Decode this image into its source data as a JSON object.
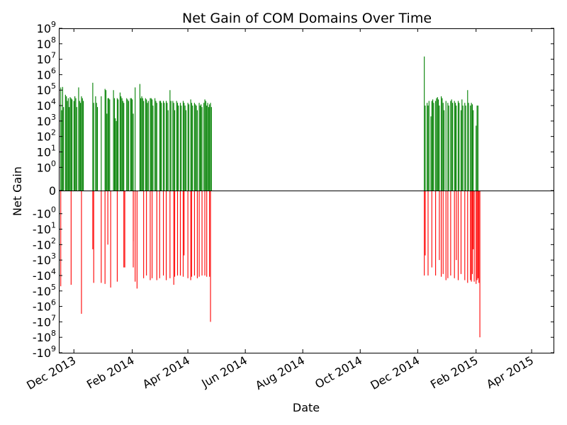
{
  "chart_data": {
    "type": "bar",
    "title": "Net Gain of COM Domains Over Time",
    "xlabel": "Date",
    "ylabel": "Net Gain",
    "yscale": "symlog",
    "xlim": [
      "2013-11-15",
      "2015-04-25"
    ],
    "ylim": [
      -1000000000,
      1000000000
    ],
    "grid": false,
    "legend": "none",
    "colors": {
      "positive": "#008000",
      "negative": "#ff0000"
    },
    "x_ticks": [
      {
        "date": "2013-12-01",
        "label": "Dec 2013"
      },
      {
        "date": "2014-02-01",
        "label": "Feb 2014"
      },
      {
        "date": "2014-04-01",
        "label": "Apr 2014"
      },
      {
        "date": "2014-06-01",
        "label": "Jun 2014"
      },
      {
        "date": "2014-08-01",
        "label": "Aug 2014"
      },
      {
        "date": "2014-10-01",
        "label": "Oct 2014"
      },
      {
        "date": "2014-12-01",
        "label": "Dec 2014"
      },
      {
        "date": "2015-02-01",
        "label": "Feb 2015"
      },
      {
        "date": "2015-04-01",
        "label": "Apr 2015"
      }
    ],
    "y_ticks": [
      {
        "value": 1000000000,
        "base": "10",
        "exp": "9"
      },
      {
        "value": 100000000,
        "base": "10",
        "exp": "8"
      },
      {
        "value": 10000000,
        "base": "10",
        "exp": "7"
      },
      {
        "value": 1000000,
        "base": "10",
        "exp": "6"
      },
      {
        "value": 100000,
        "base": "10",
        "exp": "5"
      },
      {
        "value": 10000,
        "base": "10",
        "exp": "4"
      },
      {
        "value": 1000,
        "base": "10",
        "exp": "3"
      },
      {
        "value": 100,
        "base": "10",
        "exp": "2"
      },
      {
        "value": 10,
        "base": "10",
        "exp": "1"
      },
      {
        "value": 1,
        "base": "10",
        "exp": "0"
      },
      {
        "value": 0,
        "base": "0",
        "exp": ""
      },
      {
        "value": -1,
        "base": "-10",
        "exp": "0"
      },
      {
        "value": -10,
        "base": "-10",
        "exp": "1"
      },
      {
        "value": -100,
        "base": "-10",
        "exp": "2"
      },
      {
        "value": -1000,
        "base": "-10",
        "exp": "3"
      },
      {
        "value": -10000,
        "base": "-10",
        "exp": "4"
      },
      {
        "value": -100000,
        "base": "-10",
        "exp": "5"
      },
      {
        "value": -1000000,
        "base": "-10",
        "exp": "6"
      },
      {
        "value": -10000000,
        "base": "-10",
        "exp": "7"
      },
      {
        "value": -100000000,
        "base": "-10",
        "exp": "8"
      },
      {
        "value": -1000000000,
        "base": "-10",
        "exp": "9"
      }
    ],
    "series": [
      {
        "sign": "positive",
        "points": [
          [
            "2013-11-17",
            150000
          ],
          [
            "2013-11-18",
            5000
          ],
          [
            "2013-11-19",
            160000
          ],
          [
            "2013-11-20",
            8000
          ],
          [
            "2013-11-22",
            50000
          ],
          [
            "2013-11-23",
            40000
          ],
          [
            "2013-11-24",
            20000
          ],
          [
            "2013-11-25",
            30000
          ],
          [
            "2013-11-26",
            8000
          ],
          [
            "2013-11-27",
            35000
          ],
          [
            "2013-11-28",
            30000
          ],
          [
            "2013-11-29",
            25000
          ],
          [
            "2013-12-01",
            20000
          ],
          [
            "2013-12-02",
            40000
          ],
          [
            "2013-12-03",
            30000
          ],
          [
            "2013-12-04",
            8000
          ],
          [
            "2013-12-06",
            150000
          ],
          [
            "2013-12-07",
            20000
          ],
          [
            "2013-12-08",
            15000
          ],
          [
            "2013-12-09",
            40000
          ],
          [
            "2013-12-10",
            30000
          ],
          [
            "2013-12-11",
            20000
          ],
          [
            "2013-12-21",
            300000
          ],
          [
            "2013-12-22",
            15000
          ],
          [
            "2013-12-24",
            40000
          ],
          [
            "2013-12-25",
            15000
          ],
          [
            "2013-12-26",
            8000
          ],
          [
            "2013-12-30",
            40000
          ],
          [
            "2014-01-03",
            120000
          ],
          [
            "2014-01-04",
            100000
          ],
          [
            "2014-01-05",
            3000
          ],
          [
            "2014-01-06",
            30000
          ],
          [
            "2014-01-07",
            30000
          ],
          [
            "2014-01-08",
            25000
          ],
          [
            "2014-01-12",
            100000
          ],
          [
            "2014-01-13",
            30000
          ],
          [
            "2014-01-14",
            1500
          ],
          [
            "2014-01-15",
            1000
          ],
          [
            "2014-01-16",
            30000
          ],
          [
            "2014-01-17",
            25000
          ],
          [
            "2014-01-19",
            70000
          ],
          [
            "2014-01-20",
            40000
          ],
          [
            "2014-01-21",
            30000
          ],
          [
            "2014-01-22",
            20000
          ],
          [
            "2014-01-23",
            15000
          ],
          [
            "2014-01-26",
            30000
          ],
          [
            "2014-01-27",
            25000
          ],
          [
            "2014-01-28",
            20000
          ],
          [
            "2014-01-30",
            30000
          ],
          [
            "2014-01-31",
            30000
          ],
          [
            "2014-02-01",
            25000
          ],
          [
            "2014-02-02",
            3000
          ],
          [
            "2014-02-04",
            150000
          ],
          [
            "2014-02-09",
            250000
          ],
          [
            "2014-02-10",
            30000
          ],
          [
            "2014-02-11",
            40000
          ],
          [
            "2014-02-12",
            30000
          ],
          [
            "2014-02-13",
            20000
          ],
          [
            "2014-02-15",
            30000
          ],
          [
            "2014-02-16",
            25000
          ],
          [
            "2014-02-17",
            15000
          ],
          [
            "2014-02-18",
            20000
          ],
          [
            "2014-02-20",
            30000
          ],
          [
            "2014-02-21",
            30000
          ],
          [
            "2014-02-22",
            25000
          ],
          [
            "2014-02-23",
            10000
          ],
          [
            "2014-02-25",
            30000
          ],
          [
            "2014-02-26",
            20000
          ],
          [
            "2014-02-27",
            15000
          ],
          [
            "2014-03-02",
            20000
          ],
          [
            "2014-03-03",
            20000
          ],
          [
            "2014-03-04",
            15000
          ],
          [
            "2014-03-06",
            20000
          ],
          [
            "2014-03-07",
            15000
          ],
          [
            "2014-03-09",
            20000
          ],
          [
            "2014-03-10",
            15000
          ],
          [
            "2014-03-11",
            5000
          ],
          [
            "2014-03-13",
            100000
          ],
          [
            "2014-03-14",
            20000
          ],
          [
            "2014-03-16",
            20000
          ],
          [
            "2014-03-17",
            15000
          ],
          [
            "2014-03-18",
            5000
          ],
          [
            "2014-03-20",
            20000
          ],
          [
            "2014-03-21",
            15000
          ],
          [
            "2014-03-22",
            10000
          ],
          [
            "2014-03-24",
            15000
          ],
          [
            "2014-03-25",
            10000
          ],
          [
            "2014-03-27",
            20000
          ],
          [
            "2014-03-28",
            15000
          ],
          [
            "2014-03-29",
            10000
          ],
          [
            "2014-03-30",
            5000
          ],
          [
            "2014-04-01",
            15000
          ],
          [
            "2014-04-02",
            12000
          ],
          [
            "2014-04-04",
            25000
          ],
          [
            "2014-04-05",
            15000
          ],
          [
            "2014-04-06",
            10000
          ],
          [
            "2014-04-08",
            15000
          ],
          [
            "2014-04-09",
            12000
          ],
          [
            "2014-04-10",
            10000
          ],
          [
            "2014-04-11",
            5000
          ],
          [
            "2014-04-13",
            15000
          ],
          [
            "2014-04-14",
            10000
          ],
          [
            "2014-04-15",
            12000
          ],
          [
            "2014-04-16",
            8000
          ],
          [
            "2014-04-18",
            15000
          ],
          [
            "2014-04-19",
            25000
          ],
          [
            "2014-04-20",
            20000
          ],
          [
            "2014-04-21",
            10000
          ],
          [
            "2014-04-22",
            15000
          ],
          [
            "2014-04-23",
            8000
          ],
          [
            "2014-04-24",
            12000
          ],
          [
            "2014-04-25",
            15000
          ],
          [
            "2014-04-26",
            8000
          ],
          [
            "2014-12-08",
            15000000
          ],
          [
            "2014-12-09",
            10000
          ],
          [
            "2014-12-11",
            15000
          ],
          [
            "2014-12-12",
            10000
          ],
          [
            "2014-12-13",
            20000
          ],
          [
            "2014-12-15",
            2000
          ],
          [
            "2014-12-16",
            20000
          ],
          [
            "2014-12-17",
            25000
          ],
          [
            "2014-12-18",
            15000
          ],
          [
            "2014-12-20",
            20000
          ],
          [
            "2014-12-21",
            30000
          ],
          [
            "2014-12-22",
            35000
          ],
          [
            "2014-12-23",
            25000
          ],
          [
            "2014-12-24",
            10000
          ],
          [
            "2014-12-26",
            40000
          ],
          [
            "2014-12-27",
            30000
          ],
          [
            "2014-12-28",
            15000
          ],
          [
            "2014-12-29",
            5000
          ],
          [
            "2014-12-31",
            20000
          ],
          [
            "2015-01-02",
            15000
          ],
          [
            "2015-01-03",
            10000
          ],
          [
            "2015-01-05",
            20000
          ],
          [
            "2015-01-06",
            25000
          ],
          [
            "2015-01-07",
            15000
          ],
          [
            "2015-01-09",
            20000
          ],
          [
            "2015-01-10",
            15000
          ],
          [
            "2015-01-11",
            10000
          ],
          [
            "2015-01-13",
            20000
          ],
          [
            "2015-01-14",
            15000
          ],
          [
            "2015-01-16",
            5000
          ],
          [
            "2015-01-17",
            25000
          ],
          [
            "2015-01-18",
            10000
          ],
          [
            "2015-01-20",
            15000
          ],
          [
            "2015-01-21",
            10000
          ],
          [
            "2015-01-23",
            100000
          ],
          [
            "2015-01-24",
            15000
          ],
          [
            "2015-01-26",
            10000
          ],
          [
            "2015-01-27",
            15000
          ],
          [
            "2015-01-28",
            12000
          ],
          [
            "2015-01-29",
            5000
          ],
          [
            "2015-02-01",
            500
          ],
          [
            "2015-02-02",
            10000
          ],
          [
            "2015-02-03",
            10000
          ]
        ]
      },
      {
        "sign": "negative",
        "points": [
          [
            "2013-11-17",
            -50000
          ],
          [
            "2013-11-28",
            -40000
          ],
          [
            "2013-12-09",
            -3000000
          ],
          [
            "2013-12-21",
            -200
          ],
          [
            "2013-12-22",
            -30000
          ],
          [
            "2013-12-30",
            -30000
          ],
          [
            "2014-01-03",
            -35000
          ],
          [
            "2014-01-06",
            -100
          ],
          [
            "2014-01-09",
            -60000
          ],
          [
            "2014-01-16",
            -25000
          ],
          [
            "2014-01-23",
            -3000
          ],
          [
            "2014-01-24",
            -3000
          ],
          [
            "2014-02-02",
            -3000
          ],
          [
            "2014-02-02",
            -60
          ],
          [
            "2014-02-04",
            -25000
          ],
          [
            "2014-02-06",
            -70000
          ],
          [
            "2014-02-13",
            -15000
          ],
          [
            "2014-02-16",
            -10000
          ],
          [
            "2014-02-20",
            -20000
          ],
          [
            "2014-02-22",
            -15000
          ],
          [
            "2014-02-27",
            -20000
          ],
          [
            "2014-03-02",
            -15000
          ],
          [
            "2014-03-06",
            -10000
          ],
          [
            "2014-03-09",
            -20000
          ],
          [
            "2014-03-13",
            -15000
          ],
          [
            "2014-03-17",
            -40000
          ],
          [
            "2014-03-18",
            -12000
          ],
          [
            "2014-03-21",
            -10000
          ],
          [
            "2014-03-24",
            -10000
          ],
          [
            "2014-03-27",
            -12000
          ],
          [
            "2014-03-28",
            -500
          ],
          [
            "2014-04-01",
            -15000
          ],
          [
            "2014-04-04",
            -20000
          ],
          [
            "2014-04-05",
            -12000
          ],
          [
            "2014-04-08",
            -10000
          ],
          [
            "2014-04-11",
            -15000
          ],
          [
            "2014-04-13",
            -12000
          ],
          [
            "2014-04-16",
            -10000
          ],
          [
            "2014-04-19",
            -10000
          ],
          [
            "2014-04-21",
            -12000
          ],
          [
            "2014-04-24",
            -12000
          ],
          [
            "2014-04-25",
            -10000000
          ],
          [
            "2014-12-08",
            -10000
          ],
          [
            "2014-12-09",
            -500
          ],
          [
            "2014-12-12",
            -10000
          ],
          [
            "2014-12-16",
            -3000
          ],
          [
            "2014-12-20",
            -10000
          ],
          [
            "2014-12-24",
            -1000
          ],
          [
            "2014-12-26",
            -12000
          ],
          [
            "2014-12-28",
            -8000
          ],
          [
            "2014-12-31",
            -20000
          ],
          [
            "2015-01-02",
            -15000
          ],
          [
            "2015-01-05",
            -10000
          ],
          [
            "2015-01-09",
            -15000
          ],
          [
            "2015-01-11",
            -1000
          ],
          [
            "2015-01-13",
            -20000
          ],
          [
            "2015-01-16",
            -8000
          ],
          [
            "2015-01-20",
            -20000
          ],
          [
            "2015-01-23",
            -30000
          ],
          [
            "2015-01-26",
            -20000
          ],
          [
            "2015-01-27",
            -25000
          ],
          [
            "2015-01-28",
            -8000
          ],
          [
            "2015-01-29",
            -200
          ],
          [
            "2015-01-30",
            -25000
          ],
          [
            "2015-02-01",
            -35000
          ],
          [
            "2015-02-02",
            -20000
          ],
          [
            "2015-02-03",
            -15000
          ],
          [
            "2015-02-04",
            -30000
          ],
          [
            "2015-02-05",
            -100000000
          ]
        ]
      }
    ]
  }
}
